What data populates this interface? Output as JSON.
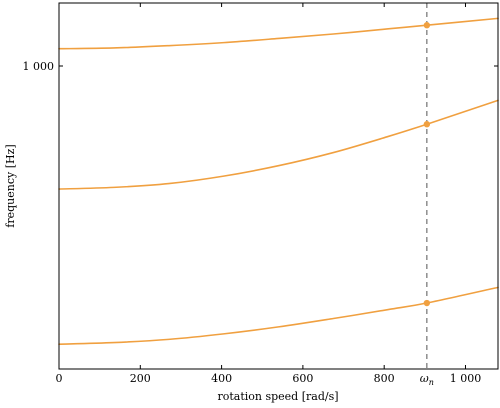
{
  "chart_data": {
    "type": "line",
    "xlabel": "rotation speed [rad/s]",
    "ylabel": "frequency [Hz]",
    "xlim": [
      0,
      1080
    ],
    "ylim": [
      470,
      1170
    ],
    "y_scale": "log",
    "x_ticks": [
      0,
      200,
      400,
      600,
      800,
      1000
    ],
    "x_tick_labels": [
      "0",
      "200",
      "400",
      "600",
      "800",
      "1 000"
    ],
    "y_ticks": [
      1000
    ],
    "y_tick_labels": [
      "1 000"
    ],
    "colors": {
      "series": "#F0A040",
      "reference_line": "#555555"
    },
    "reference_line": {
      "x": 905,
      "label": "ω_n"
    },
    "series": [
      {
        "x": [
          0,
          135,
          270,
          405,
          540,
          675,
          810,
          905,
          1080
        ],
        "y": [
          1044,
          1046,
          1052,
          1060,
          1071,
          1083,
          1097,
          1107,
          1126
        ]
      },
      {
        "x": [
          0,
          135,
          270,
          405,
          540,
          675,
          810,
          905,
          1080
        ],
        "y": [
          736,
          739,
          746,
          760,
          780,
          806,
          839,
          865,
          918
        ]
      },
      {
        "x": [
          0,
          135,
          270,
          405,
          540,
          675,
          810,
          905,
          1080
        ],
        "y": [
          500,
          502,
          506,
          513,
          522,
          533,
          545,
          554,
          576
        ]
      }
    ],
    "markers": [
      {
        "x": 905,
        "y": 1107
      },
      {
        "x": 905,
        "y": 865
      },
      {
        "x": 905,
        "y": 554
      }
    ]
  }
}
